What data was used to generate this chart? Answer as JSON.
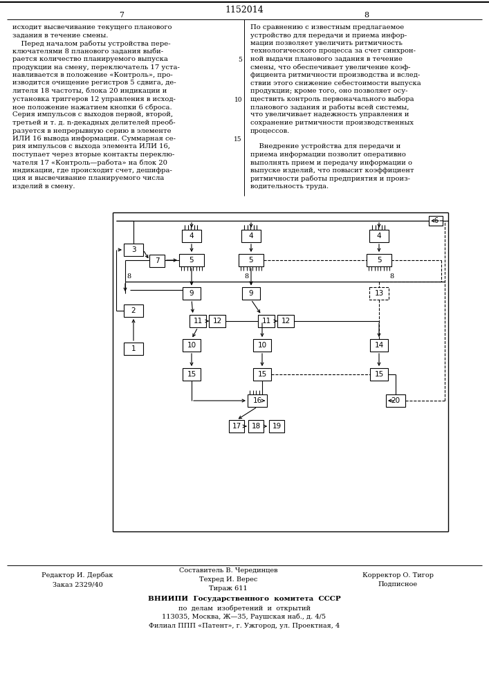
{
  "title": "1152014",
  "page_left": "7",
  "page_right": "8",
  "text_left_col": [
    "исходит высвечивание текущего планового",
    "задания в течение смены.",
    "    Перед началом работы устройства пере-",
    "ключателями 8 планового задания выби-",
    "рается количество планируемого выпуска",
    "продукции на смену, переключатель 17 уста-",
    "навливается в положение «Контроль», про-",
    "изводится очищение регистров 5 сдвига, де-",
    "лителя 18 частоты, блока 20 индикации и",
    "установка триггеров 12 управления в исход-",
    "ное положение нажатием кнопки 6 сброса.",
    "Серия импульсов с выходов первой, второй,",
    "третьей и т. д. n-декадных делителей преоб-",
    "разуется в непрерывную серию в элементе",
    "ИЛИ 16 вывода информации. Суммарная се-",
    "рия импульсов с выхода элемента ИЛИ 16,",
    "поступает через вторые контакты переклю-",
    "чателя 17 «Контроль—работа» на блок 20",
    "индикации, где происходит счет, дешифра-",
    "ция и высвечивание планируемого числа",
    "изделий в смену."
  ],
  "text_right_col": [
    "По сравнению с известным предлагаемое",
    "устройство для передачи и приема инфор-",
    "мации позволяет увеличить ритмичность",
    "технологического процесса за счет синхрон-",
    "ной выдачи планового задания в течение",
    "смены, что обеспечивает увеличение коэф-",
    "фициента ритмичности производства и вслед-",
    "ствии этого снижение себестоимости выпуска",
    "продукции; кроме того, оно позволяет осу-",
    "ществить контроль первоначального выбора",
    "планового задания и работы всей системы,",
    "что увеличивает надежность управления и",
    "сохранение ритмичности производственных",
    "процессов.",
    "",
    "    Внедрение устройства для передачи и",
    "приема информации позволит оперативно",
    "выполнять прием и передачу информации о",
    "выпуске изделий, что повысит коэффициент",
    "ритмичности работы предприятия и произ-",
    "водительность труда."
  ],
  "footer_left1": "Редактор И. Дербак",
  "footer_left2": "Заказ 2329/40",
  "footer_center1": "Составитель В. Черединцев",
  "footer_center2": "Техред И. Верес",
  "footer_center3": "Тираж 611",
  "footer_right2": "Корректор О. Тигор",
  "footer_right3": "Подписное",
  "footer_org1": "ВНИИПИ  Государственного  комитета  СССР",
  "footer_org2": "по  делам  изобретений  и  открытий",
  "footer_org3": "113035, Москва, Ж—35, Раушская наб., д. 4/5",
  "footer_org4": "Филиал ППП «Патент», г. Ужгород, ул. Проектная, 4"
}
